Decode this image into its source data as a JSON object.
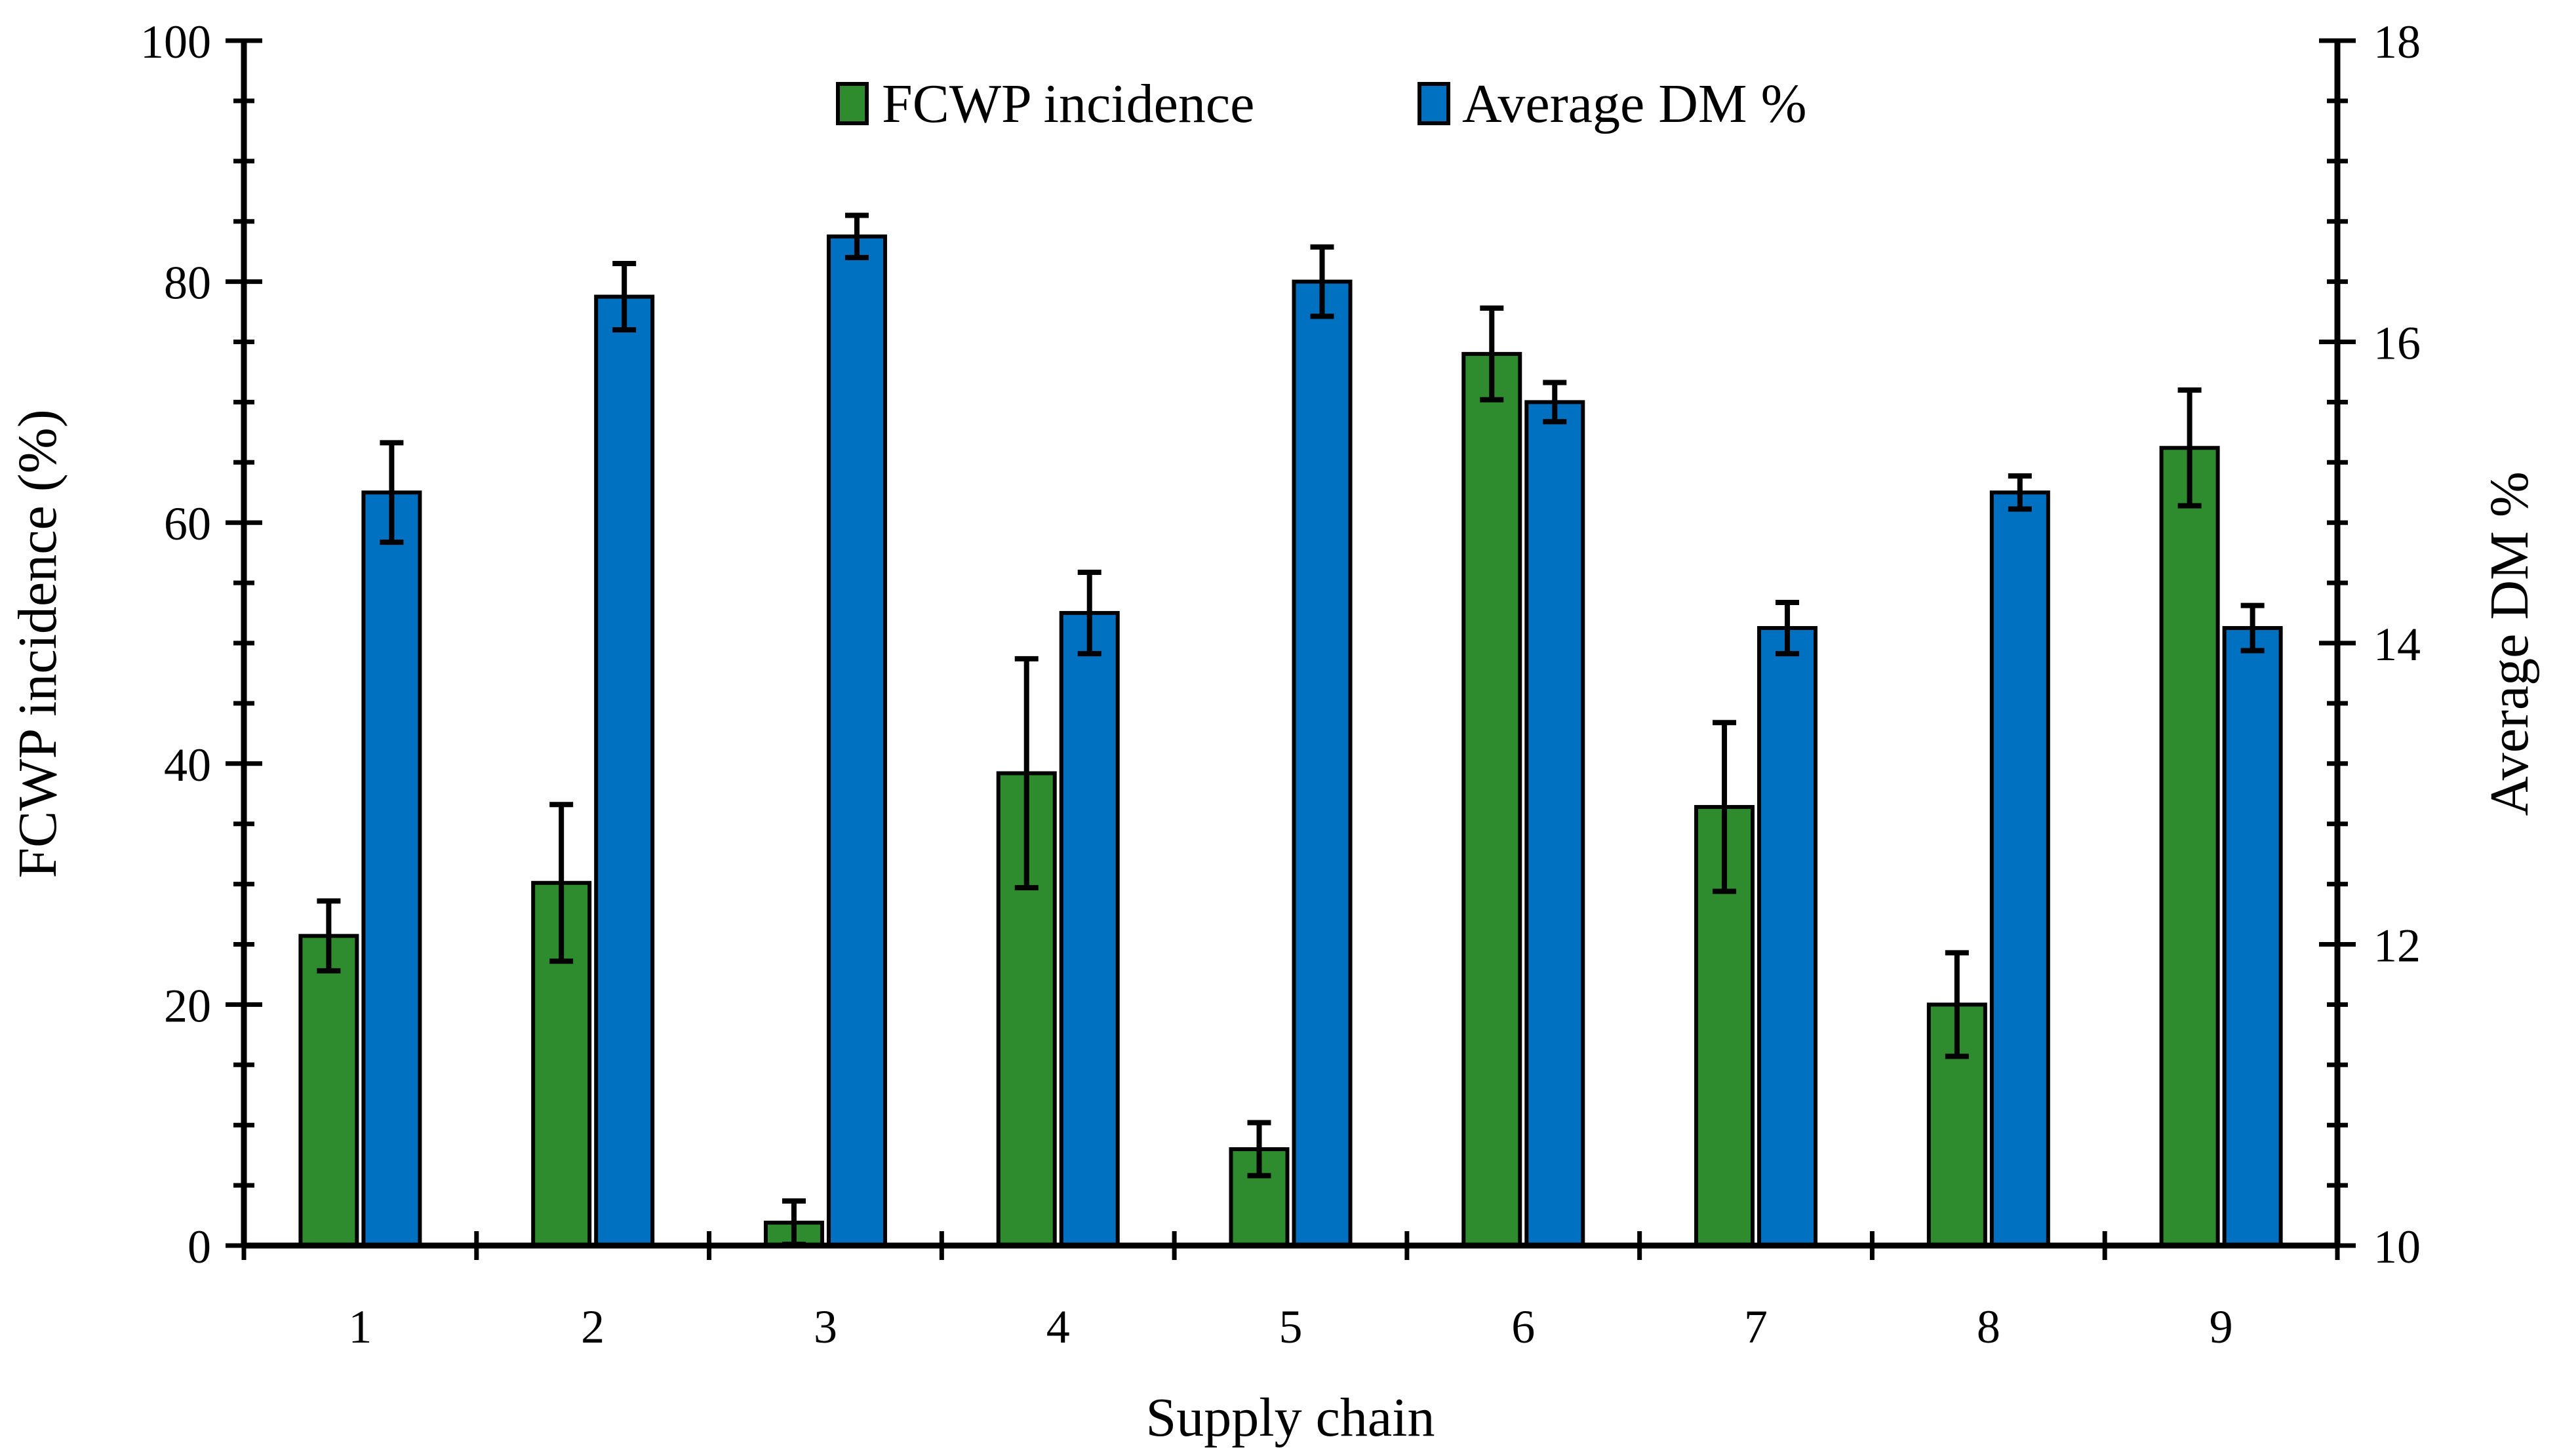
{
  "chart_data": {
    "type": "bar",
    "xlabel": "Supply chain",
    "ylabel_left": "FCWP incidence (%)",
    "ylabel_right": "Average DM %",
    "categories": [
      "1",
      "2",
      "3",
      "4",
      "5",
      "6",
      "7",
      "8",
      "9"
    ],
    "y_left": {
      "min": 0,
      "max": 100,
      "ticks": [
        "0",
        "20",
        "40",
        "60",
        "80",
        "100"
      ]
    },
    "y_right": {
      "min": 10,
      "max": 18,
      "ticks": [
        "10",
        "12",
        "14",
        "16",
        "18"
      ]
    },
    "series": [
      {
        "name": "FCWP incidence",
        "axis": "left",
        "color": "#2e8b2e",
        "values": [
          25.7,
          30.1,
          1.9,
          39.2,
          8.0,
          74.0,
          36.4,
          20.0,
          66.2
        ],
        "errors": [
          2.9,
          6.5,
          1.8,
          9.5,
          2.2,
          3.8,
          7.0,
          4.3,
          4.8
        ]
      },
      {
        "name": "Average DM %",
        "axis": "right",
        "color": "#0070c0",
        "values": [
          15.0,
          16.3,
          16.7,
          14.2,
          16.4,
          15.6,
          14.1,
          15.0,
          14.1
        ],
        "errors": [
          0.33,
          0.22,
          0.14,
          0.27,
          0.23,
          0.13,
          0.17,
          0.11,
          0.15
        ]
      }
    ]
  }
}
